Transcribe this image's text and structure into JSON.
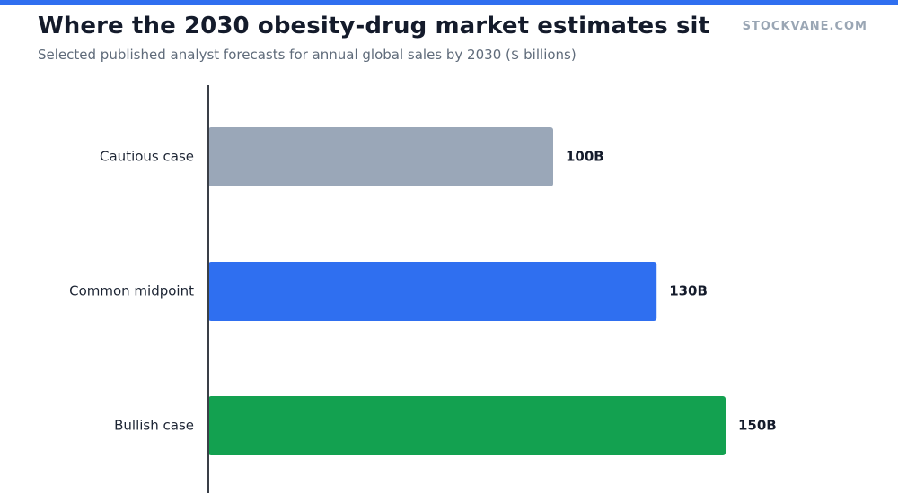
{
  "header": {
    "title": "Where the 2030 obesity-drug market estimates sit",
    "subtitle": "Selected published analyst forecasts for annual global sales by 2030 ($ billions)",
    "brand": "STOCKVANE.COM"
  },
  "colors": {
    "accent": "#2f6ff0",
    "axis": "#3a3f47"
  },
  "chart_data": {
    "type": "bar",
    "orientation": "horizontal",
    "title": "Where the 2030 obesity-drug market estimates sit",
    "subtitle": "Selected published analyst forecasts for annual global sales by 2030 ($ billions)",
    "xlabel": "",
    "ylabel": "",
    "xlim": [
      0,
      200
    ],
    "grid": false,
    "categories": [
      "Cautious case",
      "Common midpoint",
      "Bullish case"
    ],
    "values": [
      100,
      130,
      150
    ],
    "value_labels": [
      "100B",
      "130B",
      "150B"
    ],
    "colors": [
      "#9aa7b8",
      "#2f6ff0",
      "#13a150"
    ]
  }
}
